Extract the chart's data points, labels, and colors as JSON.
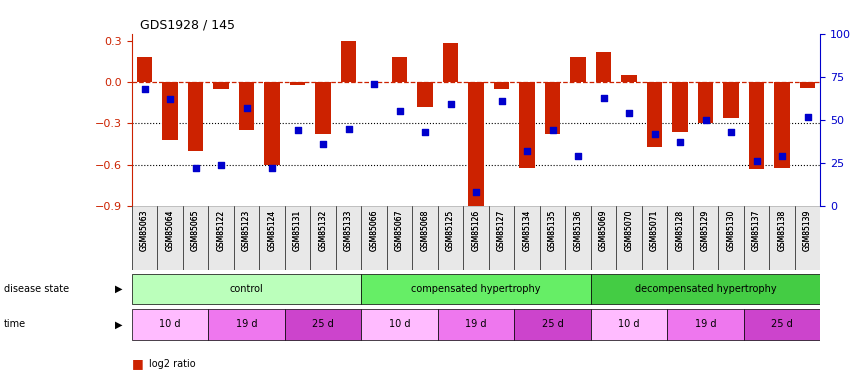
{
  "title": "GDS1928 / 145",
  "samples": [
    "GSM85063",
    "GSM85064",
    "GSM85065",
    "GSM85122",
    "GSM85123",
    "GSM85124",
    "GSM85131",
    "GSM85132",
    "GSM85133",
    "GSM85066",
    "GSM85067",
    "GSM85068",
    "GSM85125",
    "GSM85126",
    "GSM85127",
    "GSM85134",
    "GSM85135",
    "GSM85136",
    "GSM85069",
    "GSM85070",
    "GSM85071",
    "GSM85128",
    "GSM85129",
    "GSM85130",
    "GSM85137",
    "GSM85138",
    "GSM85139"
  ],
  "log2_ratio": [
    0.18,
    -0.42,
    -0.5,
    -0.05,
    -0.35,
    -0.6,
    -0.02,
    -0.38,
    0.3,
    0.0,
    0.18,
    -0.18,
    0.28,
    -0.92,
    -0.05,
    -0.62,
    -0.38,
    0.18,
    0.22,
    0.05,
    -0.47,
    -0.36,
    -0.3,
    -0.26,
    -0.63,
    -0.62,
    -0.04
  ],
  "percentile": [
    68,
    62,
    22,
    24,
    57,
    22,
    44,
    36,
    45,
    71,
    55,
    43,
    59,
    8,
    61,
    32,
    44,
    29,
    63,
    54,
    42,
    37,
    50,
    43,
    26,
    29,
    52
  ],
  "disease_groups": [
    {
      "label": "control",
      "start": 0,
      "end": 9,
      "color": "#bbffbb"
    },
    {
      "label": "compensated hypertrophy",
      "start": 9,
      "end": 18,
      "color": "#66ee66"
    },
    {
      "label": "decompensated hypertrophy",
      "start": 18,
      "end": 27,
      "color": "#44cc44"
    }
  ],
  "time_groups": [
    {
      "label": "10 d",
      "start": 0,
      "end": 3,
      "color": "#ffbbff"
    },
    {
      "label": "19 d",
      "start": 3,
      "end": 6,
      "color": "#ee77ee"
    },
    {
      "label": "25 d",
      "start": 6,
      "end": 9,
      "color": "#cc44cc"
    },
    {
      "label": "10 d",
      "start": 9,
      "end": 12,
      "color": "#ffbbff"
    },
    {
      "label": "19 d",
      "start": 12,
      "end": 15,
      "color": "#ee77ee"
    },
    {
      "label": "25 d",
      "start": 15,
      "end": 18,
      "color": "#cc44cc"
    },
    {
      "label": "10 d",
      "start": 18,
      "end": 21,
      "color": "#ffbbff"
    },
    {
      "label": "19 d",
      "start": 21,
      "end": 24,
      "color": "#ee77ee"
    },
    {
      "label": "25 d",
      "start": 24,
      "end": 27,
      "color": "#cc44cc"
    }
  ],
  "ylim_left": [
    -0.9,
    0.35
  ],
  "ylim_right": [
    0,
    100
  ],
  "bar_color": "#cc2200",
  "dot_color": "#0000cc",
  "hline_y": 0.0,
  "dotted_lines": [
    -0.3,
    -0.6
  ],
  "right_ticks": [
    0,
    25,
    50,
    75,
    100
  ],
  "right_tick_labels": [
    "0",
    "25",
    "50",
    "75",
    "100%"
  ],
  "left_ticks": [
    -0.9,
    -0.6,
    -0.3,
    0,
    0.3
  ]
}
